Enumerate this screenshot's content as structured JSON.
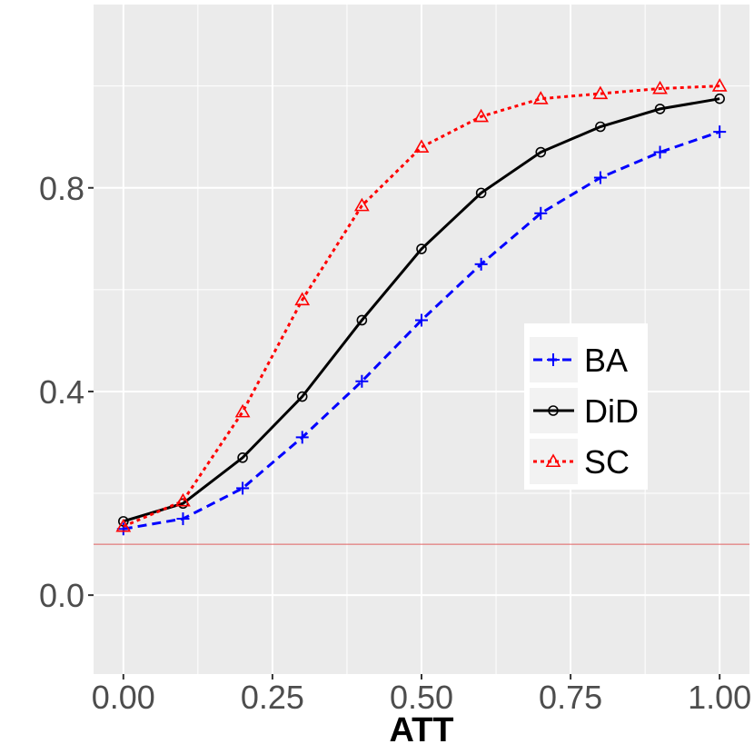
{
  "chart_data": {
    "type": "line",
    "title": "",
    "xlabel": "ATT",
    "ylabel": "",
    "xlim": [
      -0.05,
      1.05
    ],
    "ylim": [
      -0.155,
      1.16
    ],
    "x": [
      0.0,
      0.1,
      0.2,
      0.3,
      0.4,
      0.5,
      0.6,
      0.7,
      0.8,
      0.9,
      1.0
    ],
    "x_ticks": [
      0.0,
      0.25,
      0.5,
      0.75,
      1.0
    ],
    "x_tick_labels": [
      "0.00",
      "0.25",
      "0.50",
      "0.75",
      "1.00"
    ],
    "y_ticks": [
      0.0,
      0.4,
      0.8
    ],
    "y_tick_labels": [
      "0.0",
      "0.4",
      "0.8"
    ],
    "reference_line": {
      "y": 0.1,
      "color": "#e06060"
    },
    "grid": true,
    "legend_position": "center-right",
    "series": [
      {
        "name": "BA",
        "color": "#0000ff",
        "dash": "dashed",
        "marker": "plus",
        "values": [
          0.13,
          0.15,
          0.21,
          0.31,
          0.42,
          0.54,
          0.65,
          0.75,
          0.82,
          0.87,
          0.91
        ]
      },
      {
        "name": "DiD",
        "color": "#000000",
        "dash": "solid",
        "marker": "circle",
        "values": [
          0.145,
          0.18,
          0.27,
          0.39,
          0.54,
          0.68,
          0.79,
          0.87,
          0.92,
          0.955,
          0.975
        ]
      },
      {
        "name": "SC",
        "color": "#ff0000",
        "dash": "dotted",
        "marker": "triangle",
        "values": [
          0.135,
          0.185,
          0.36,
          0.58,
          0.765,
          0.88,
          0.94,
          0.975,
          0.985,
          0.995,
          1.0
        ]
      }
    ]
  }
}
